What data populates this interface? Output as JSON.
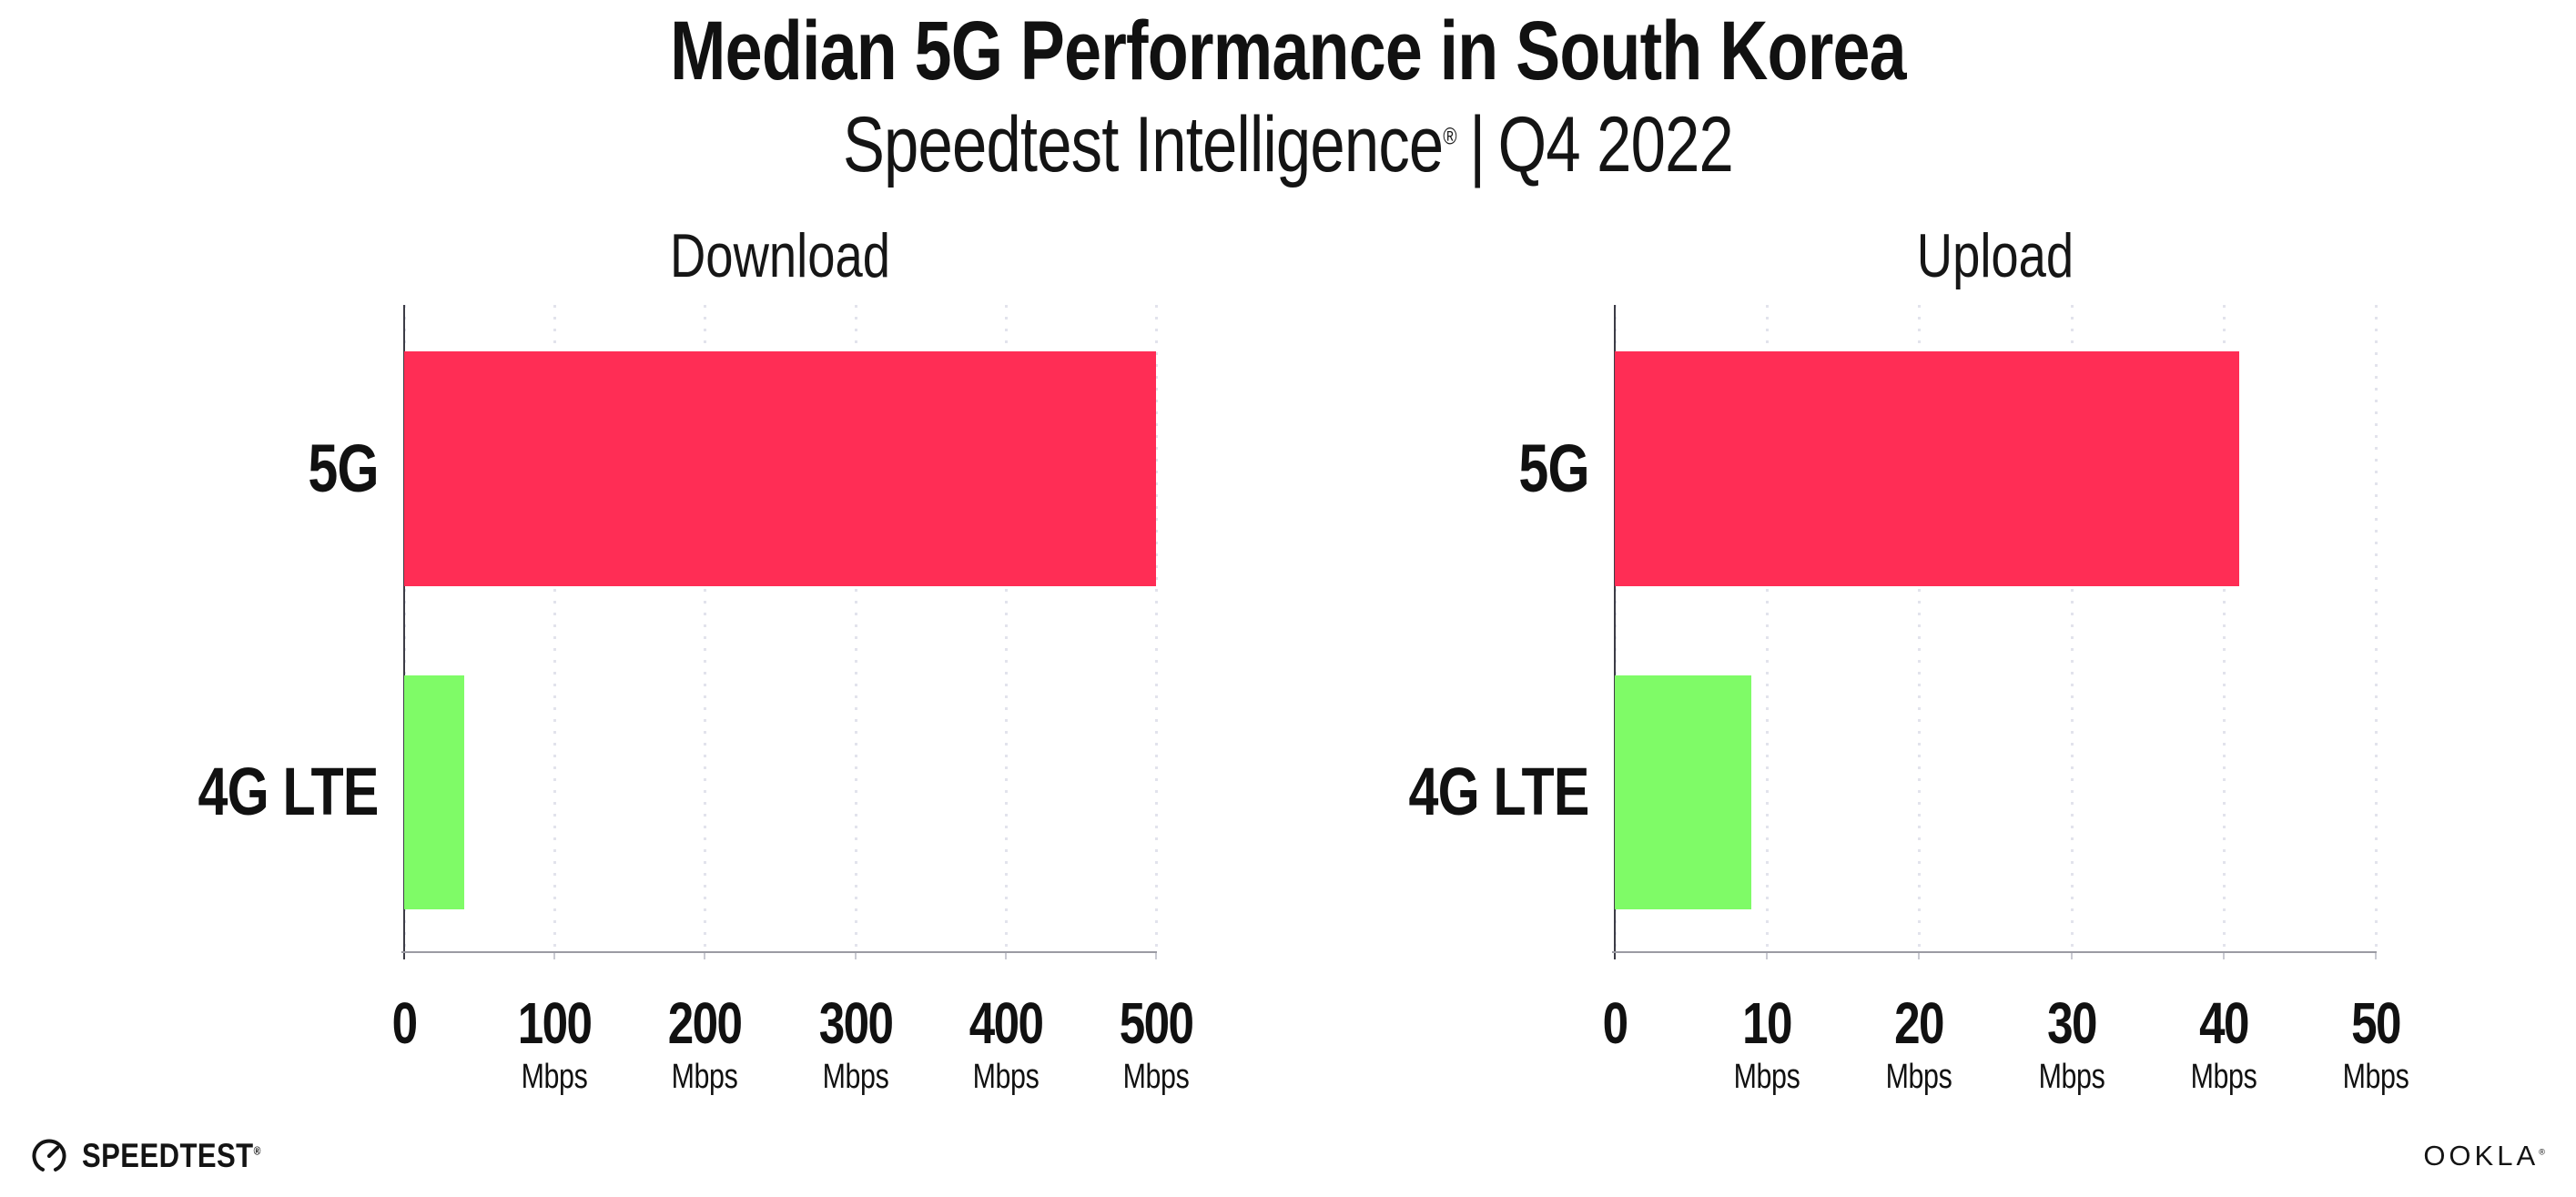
{
  "header": {
    "title": "Median 5G Performance in South Korea",
    "subtitle_brand": "Speedtest Intelligence",
    "subtitle_registered": "®",
    "subtitle_separator": "|",
    "subtitle_period": "Q4 2022"
  },
  "colors": {
    "bar_5g": "#ff2d55",
    "bar_4g_lte": "#7ffb67",
    "gridline": "#e2e3ec",
    "y_axis": "#3c3c46",
    "x_axis": "#9b9ba3",
    "text": "#111111"
  },
  "chart_data": [
    {
      "type": "bar",
      "orientation": "horizontal",
      "title": "Download",
      "categories": [
        "5G",
        "4G LTE"
      ],
      "values": [
        500,
        40
      ],
      "unit": "Mbps",
      "xlim": [
        0,
        500
      ],
      "xticks": [
        0,
        100,
        200,
        300,
        400,
        500
      ],
      "bar_colors": [
        "#ff2d55",
        "#7ffb67"
      ],
      "grid": "vertical-dotted",
      "legend": "none"
    },
    {
      "type": "bar",
      "orientation": "horizontal",
      "title": "Upload",
      "categories": [
        "5G",
        "4G LTE"
      ],
      "values": [
        41,
        9
      ],
      "unit": "Mbps",
      "xlim": [
        0,
        50
      ],
      "xticks": [
        0,
        10,
        20,
        30,
        40,
        50
      ],
      "bar_colors": [
        "#ff2d55",
        "#7ffb67"
      ],
      "grid": "vertical-dotted",
      "legend": "none"
    }
  ],
  "footer": {
    "speedtest_wordmark": "SPEEDTEST",
    "speedtest_registered": "®",
    "ookla_wordmark": "OOKLA",
    "ookla_registered": "®"
  }
}
